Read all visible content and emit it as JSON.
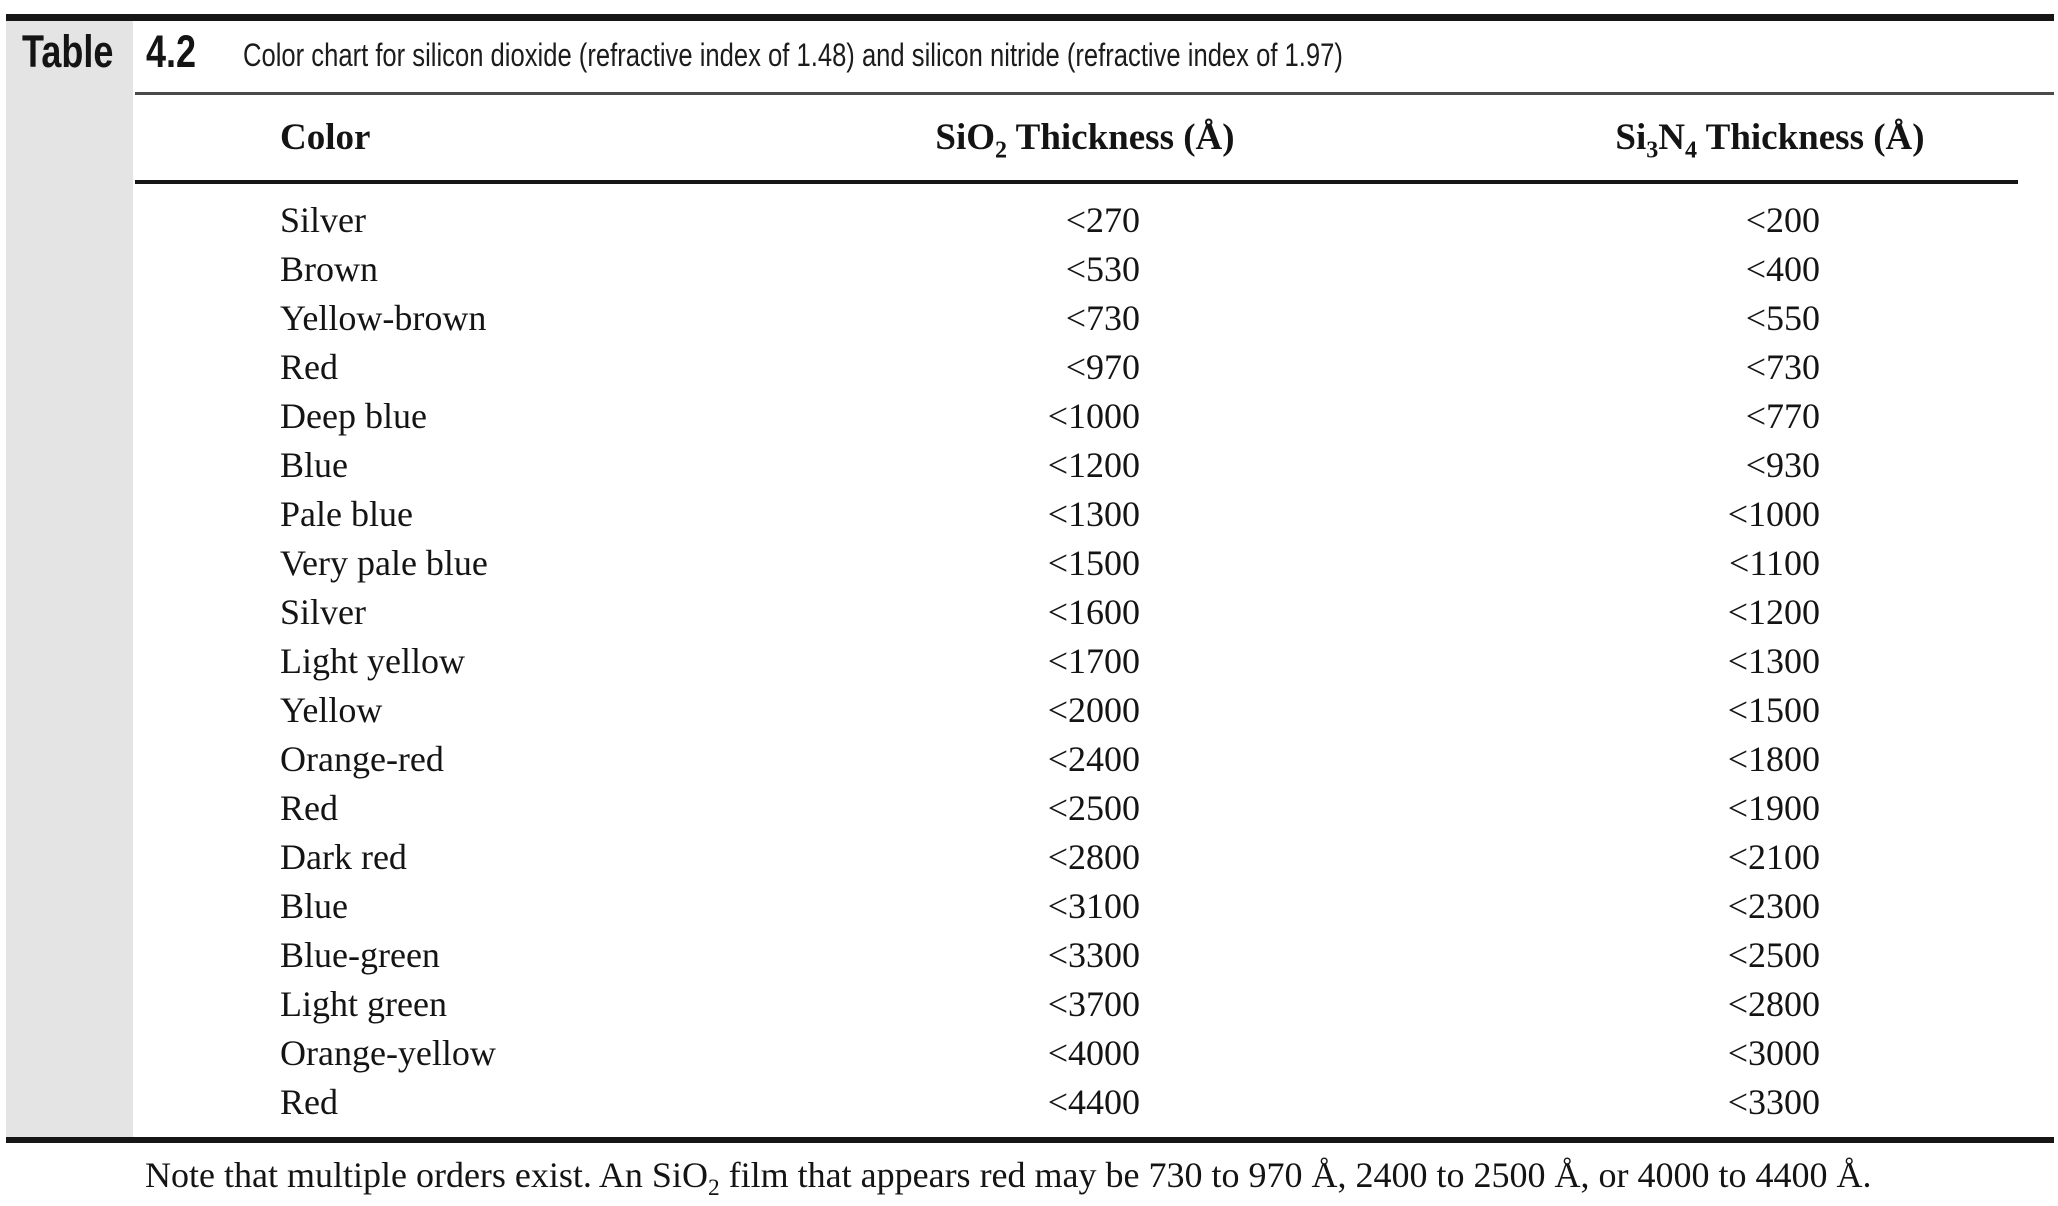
{
  "caption": {
    "label": "Table",
    "number": "4.2",
    "title": "Color chart for silicon dioxide (refractive index of 1.48) and silicon nitride (refractive index of 1.97)"
  },
  "columns": {
    "color": "Color",
    "sio2": {
      "pre": "SiO",
      "sub": "2",
      "post": " Thickness (Å)"
    },
    "si3n4": {
      "pre": "Si",
      "sub1": "3",
      "mid": "N",
      "sub2": "4",
      "post": " Thickness (Å)"
    }
  },
  "table": {
    "rows": [
      {
        "color": "Silver",
        "sio2": "<270",
        "si3n4": "<200"
      },
      {
        "color": "Brown",
        "sio2": "<530",
        "si3n4": "<400"
      },
      {
        "color": "Yellow-brown",
        "sio2": "<730",
        "si3n4": "<550"
      },
      {
        "color": "Red",
        "sio2": "<970",
        "si3n4": "<730"
      },
      {
        "color": "Deep blue",
        "sio2": "<1000",
        "si3n4": "<770"
      },
      {
        "color": "Blue",
        "sio2": "<1200",
        "si3n4": "<930"
      },
      {
        "color": "Pale blue",
        "sio2": "<1300",
        "si3n4": "<1000"
      },
      {
        "color": "Very pale blue",
        "sio2": "<1500",
        "si3n4": "<1100"
      },
      {
        "color": "Silver",
        "sio2": "<1600",
        "si3n4": "<1200"
      },
      {
        "color": "Light yellow",
        "sio2": "<1700",
        "si3n4": "<1300"
      },
      {
        "color": "Yellow",
        "sio2": "<2000",
        "si3n4": "<1500"
      },
      {
        "color": "Orange-red",
        "sio2": "<2400",
        "si3n4": "<1800"
      },
      {
        "color": "Red",
        "sio2": "<2500",
        "si3n4": "<1900"
      },
      {
        "color": "Dark red",
        "sio2": "<2800",
        "si3n4": "<2100"
      },
      {
        "color": "Blue",
        "sio2": "<3100",
        "si3n4": "<2300"
      },
      {
        "color": "Blue-green",
        "sio2": "<3300",
        "si3n4": "<2500"
      },
      {
        "color": "Light green",
        "sio2": "<3700",
        "si3n4": "<2800"
      },
      {
        "color": "Orange-yellow",
        "sio2": "<4000",
        "si3n4": "<3000"
      },
      {
        "color": "Red",
        "sio2": "<4400",
        "si3n4": "<3300"
      }
    ]
  },
  "note": {
    "pre": "Note that multiple orders exist. An SiO",
    "sub": "2",
    "post": " film that appears red may be 730 to 970 Å, 2400 to 2500 Å, or 4000 to 4400 Å."
  },
  "colors": {
    "band_gray": "#e4e4e4",
    "rule_black": "#161616",
    "rule_gray": "#4a4a4a",
    "text": "#141414",
    "background": "#ffffff"
  }
}
